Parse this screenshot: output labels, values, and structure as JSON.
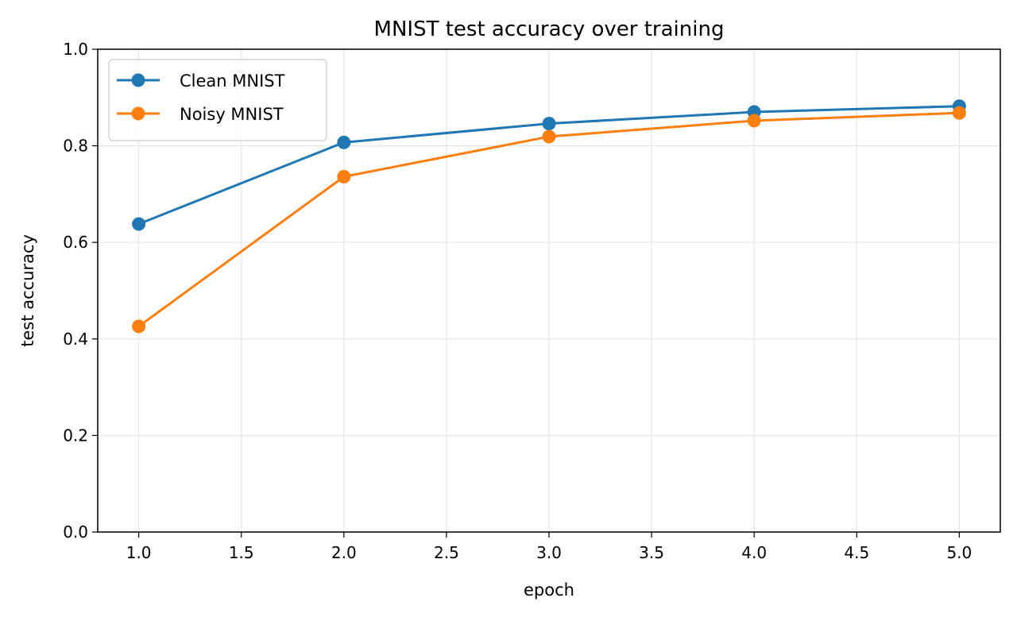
{
  "chart_data": {
    "type": "line",
    "title": "MNIST test accuracy over training",
    "xlabel": "epoch",
    "ylabel": "test accuracy",
    "xlim": [
      0.8,
      5.2
    ],
    "ylim": [
      0.0,
      1.0
    ],
    "xticks": [
      1.0,
      1.5,
      2.0,
      2.5,
      3.0,
      3.5,
      4.0,
      4.5,
      5.0
    ],
    "xtick_labels": [
      "1.0",
      "1.5",
      "2.0",
      "2.5",
      "3.0",
      "3.5",
      "4.0",
      "4.5",
      "5.0"
    ],
    "yticks": [
      0.0,
      0.2,
      0.4,
      0.6,
      0.8,
      1.0
    ],
    "ytick_labels": [
      "0.0",
      "0.2",
      "0.4",
      "0.6",
      "0.8",
      "1.0"
    ],
    "grid": true,
    "legend_position": "top-left",
    "x": [
      1,
      2,
      3,
      4,
      5
    ],
    "series": [
      {
        "name": "Clean MNIST",
        "color": "#1f77b4",
        "values": [
          0.638,
          0.807,
          0.846,
          0.87,
          0.882
        ]
      },
      {
        "name": "Noisy MNIST",
        "color": "#ff7f0e",
        "values": [
          0.426,
          0.736,
          0.819,
          0.852,
          0.868
        ]
      }
    ]
  }
}
